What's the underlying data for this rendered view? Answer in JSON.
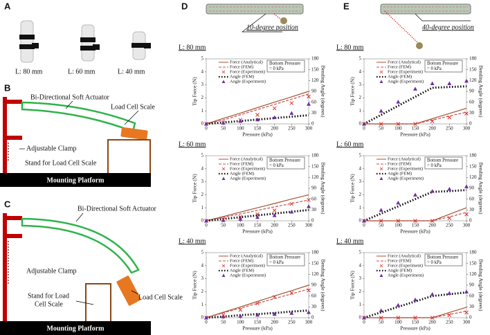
{
  "panel_labels": [
    "A",
    "B",
    "C",
    "D",
    "E"
  ],
  "panel_a": {
    "lengths": [
      "L: 80 mm",
      "L: 60 mm",
      "L: 40 mm"
    ]
  },
  "panel_b": {
    "actuator": "Bi-Directional Soft Actuator",
    "clamp": "Adjustable Clamp",
    "load_cell": "Load Cell Scale",
    "stand": "Stand for Load Cell Scale",
    "platform": "Mounting Platform"
  },
  "panel_c": {
    "actuator": "Bi-Directional Soft Actuator",
    "clamp": "Adjustable Clamp",
    "load_cell": "Load Cell Scale",
    "stand": [
      "Stand for Load",
      "Cell Scale"
    ],
    "platform": "Mounting Platform"
  },
  "panel_d": {
    "position": "10-degree position"
  },
  "panel_e": {
    "position": "40-degree position"
  },
  "chart_data": [
    {
      "type": "line",
      "subtitle": "L: 80 mm",
      "annotation": [
        "Bottom Pressure",
        "= 0 kPa"
      ],
      "xlabel": "Pressure (kPa)",
      "ylabel": "Tip Force (N)",
      "y2label": "Bending Angle (degrees)",
      "x": [
        0,
        50,
        100,
        150,
        200,
        250,
        300
      ],
      "xlim": [
        0,
        300
      ],
      "xticks": [
        0,
        50,
        100,
        150,
        200,
        250,
        300
      ],
      "ylim": [
        0,
        5
      ],
      "yticks": [
        0,
        1,
        2,
        3,
        4,
        5
      ],
      "y2lim": [
        0,
        180
      ],
      "y2ticks": [
        0,
        30,
        60,
        90,
        120,
        150,
        180
      ],
      "series": [
        {
          "name": "Force (Analytical)",
          "color": "#a0522d",
          "style": "solid",
          "values": [
            0,
            0.42,
            0.83,
            1.25,
            1.67,
            2.08,
            2.5
          ]
        },
        {
          "name": "Force (FEM)",
          "color": "#c0504d",
          "style": "dashed",
          "values": [
            0,
            0.3,
            0.7,
            1.1,
            1.5,
            1.9,
            2.3
          ]
        },
        {
          "name": "Force (Experiment)",
          "color": "#e03030",
          "marker": "x",
          "values": [
            0,
            0.1,
            0.3,
            0.7,
            1.2,
            1.6,
            2.1
          ]
        },
        {
          "name": "Angle (FEM)",
          "color": "#000000",
          "style": "dotted",
          "axis": "y2",
          "values": [
            0,
            4,
            8,
            12,
            16,
            20,
            24
          ]
        },
        {
          "name": "Angle (Experiment)",
          "color": "#7030a0",
          "marker": "triangle",
          "axis": "y2",
          "values": [
            0,
            3,
            8,
            12,
            18,
            30,
            55
          ]
        }
      ]
    },
    {
      "type": "line",
      "subtitle": "L: 60 mm",
      "annotation": [
        "Bottom Pressure",
        "= 0 kPa"
      ],
      "xlabel": "Pressure (kPa)",
      "ylabel": "Tip Force (N)",
      "y2label": "Bending Angle (degrees)",
      "x": [
        0,
        50,
        100,
        150,
        200,
        250,
        300
      ],
      "xlim": [
        0,
        300
      ],
      "xticks": [
        0,
        50,
        100,
        150,
        200,
        250,
        300
      ],
      "ylim": [
        0,
        5
      ],
      "yticks": [
        0,
        1,
        2,
        3,
        4,
        5
      ],
      "y2lim": [
        0,
        180
      ],
      "y2ticks": [
        0,
        30,
        60,
        90,
        120,
        150,
        180
      ],
      "series": [
        {
          "name": "Force (Analytical)",
          "color": "#a0522d",
          "style": "solid",
          "values": [
            0,
            0.33,
            0.67,
            1.0,
            1.33,
            1.67,
            2.0
          ]
        },
        {
          "name": "Force (FEM)",
          "color": "#c0504d",
          "style": "dashed",
          "values": [
            0,
            0.27,
            0.53,
            0.8,
            1.07,
            1.33,
            1.6
          ]
        },
        {
          "name": "Force (Experiment)",
          "color": "#e03030",
          "marker": "x",
          "values": [
            0,
            0.1,
            0.3,
            0.5,
            0.8,
            1.3,
            1.6
          ]
        },
        {
          "name": "Angle (FEM)",
          "color": "#000000",
          "style": "dotted",
          "axis": "y2",
          "values": [
            0,
            5,
            10,
            15,
            20,
            25,
            30
          ]
        },
        {
          "name": "Angle (Experiment)",
          "color": "#7030a0",
          "marker": "triangle",
          "axis": "y2",
          "values": [
            0,
            2,
            5,
            10,
            15,
            25,
            40
          ]
        }
      ]
    },
    {
      "type": "line",
      "subtitle": "L: 40 mm",
      "annotation": [
        "Bottom Pressure",
        "= 0 kPa"
      ],
      "xlabel": "Pressure (kPa)",
      "ylabel": "Tip Force (N)",
      "y2label": "Bending Angle (degrees)",
      "x": [
        0,
        50,
        100,
        150,
        200,
        250,
        300
      ],
      "xlim": [
        0,
        300
      ],
      "xticks": [
        0,
        50,
        100,
        150,
        200,
        250,
        300
      ],
      "ylim": [
        0,
        5
      ],
      "yticks": [
        0,
        1,
        2,
        3,
        4,
        5
      ],
      "y2lim": [
        0,
        180
      ],
      "y2ticks": [
        0,
        30,
        60,
        90,
        120,
        150,
        180
      ],
      "series": [
        {
          "name": "Force (Analytical)",
          "color": "#a0522d",
          "style": "solid",
          "values": [
            0,
            0.42,
            0.83,
            1.25,
            1.67,
            2.08,
            2.5
          ]
        },
        {
          "name": "Force (FEM)",
          "color": "#c0504d",
          "style": "dashed",
          "values": [
            0,
            0.37,
            0.73,
            1.1,
            1.47,
            1.83,
            2.2
          ]
        },
        {
          "name": "Force (Experiment)",
          "color": "#e03030",
          "marker": "x",
          "values": [
            0,
            0.2,
            0.6,
            1.1,
            1.6,
            1.9,
            2.1
          ]
        },
        {
          "name": "Angle (FEM)",
          "color": "#000000",
          "style": "dotted",
          "axis": "y2",
          "values": [
            0,
            3,
            7,
            10,
            13,
            17,
            20
          ]
        },
        {
          "name": "Angle (Experiment)",
          "color": "#7030a0",
          "marker": "triangle",
          "axis": "y2",
          "values": [
            0,
            3,
            5,
            8,
            10,
            13,
            15
          ]
        }
      ]
    },
    {
      "type": "line",
      "subtitle": "L: 80 mm",
      "annotation": [
        "Bottom Pressure",
        "= 0 kPa"
      ],
      "xlabel": "Pressure (kPa)",
      "ylabel": "Tip Force (N)",
      "y2label": "Bending Angle (degrees)",
      "x": [
        0,
        50,
        100,
        150,
        200,
        250,
        300
      ],
      "xlim": [
        0,
        300
      ],
      "xticks": [
        0,
        50,
        100,
        150,
        200,
        250,
        300
      ],
      "ylim": [
        0,
        5
      ],
      "yticks": [
        0,
        1,
        2,
        3,
        4,
        5
      ],
      "y2lim": [
        0,
        180
      ],
      "y2ticks": [
        0,
        30,
        60,
        90,
        120,
        150,
        180
      ],
      "series": [
        {
          "name": "Force (Analytical)",
          "color": "#a0522d",
          "style": "solid",
          "values": [
            0,
            0,
            0,
            0,
            0.4,
            0.8,
            1.2
          ]
        },
        {
          "name": "Force (FEM)",
          "color": "#c0504d",
          "style": "dashed",
          "values": [
            0,
            0,
            0,
            0,
            0.3,
            0.6,
            0.9
          ]
        },
        {
          "name": "Force (Experiment)",
          "color": "#e03030",
          "marker": "x",
          "values": [
            0,
            0,
            0,
            0,
            0.2,
            0.5,
            0.8
          ]
        },
        {
          "name": "Angle (FEM)",
          "color": "#000000",
          "style": "dotted",
          "axis": "y2",
          "values": [
            0,
            25,
            50,
            75,
            100,
            102,
            104
          ]
        },
        {
          "name": "Angle (Experiment)",
          "color": "#7030a0",
          "marker": "triangle",
          "axis": "y2",
          "values": [
            0,
            36,
            61,
            97,
            112,
            112,
            119
          ]
        }
      ]
    },
    {
      "type": "line",
      "subtitle": "L: 60 mm",
      "annotation": [
        "Bottom Pressure",
        "= 0 kPa"
      ],
      "xlabel": "Pressure (kPa)",
      "ylabel": "Tip Force (N)",
      "y2label": "Bending Angle (degrees)",
      "x": [
        0,
        50,
        100,
        150,
        200,
        250,
        300
      ],
      "xlim": [
        0,
        300
      ],
      "xticks": [
        0,
        50,
        100,
        150,
        200,
        250,
        300
      ],
      "ylim": [
        0,
        5
      ],
      "yticks": [
        0,
        1,
        2,
        3,
        4,
        5
      ],
      "y2lim": [
        0,
        180
      ],
      "y2ticks": [
        0,
        30,
        60,
        90,
        120,
        150,
        180
      ],
      "series": [
        {
          "name": "Force (Analytical)",
          "color": "#a0522d",
          "style": "solid",
          "values": [
            0,
            0,
            0,
            0,
            0,
            0.5,
            1.0
          ]
        },
        {
          "name": "Force (FEM)",
          "color": "#c0504d",
          "style": "dashed",
          "values": [
            0,
            0,
            0,
            0,
            0,
            0.3,
            0.65
          ]
        },
        {
          "name": "Force (Experiment)",
          "color": "#e03030",
          "marker": "x",
          "values": [
            0,
            0,
            0,
            0,
            0,
            0.2,
            0.5
          ]
        },
        {
          "name": "Angle (FEM)",
          "color": "#000000",
          "style": "dotted",
          "axis": "y2",
          "values": [
            0,
            20,
            40,
            60,
            80,
            82,
            85
          ]
        },
        {
          "name": "Angle (Experiment)",
          "color": "#7030a0",
          "marker": "triangle",
          "axis": "y2",
          "values": [
            0,
            30,
            50,
            72,
            82,
            88,
            95
          ]
        }
      ]
    },
    {
      "type": "line",
      "subtitle": "L: 40 mm",
      "annotation": [
        "Bottom Pressure",
        "= 0 kPa"
      ],
      "xlabel": "Pressure (kPa)",
      "ylabel": "Tip Force (N)",
      "y2label": "Bending Angle (degrees)",
      "x": [
        0,
        50,
        100,
        150,
        200,
        250,
        300
      ],
      "xlim": [
        0,
        300
      ],
      "xticks": [
        0,
        50,
        100,
        150,
        200,
        250,
        300
      ],
      "ylim": [
        0,
        5
      ],
      "yticks": [
        0,
        1,
        2,
        3,
        4,
        5
      ],
      "y2lim": [
        0,
        180
      ],
      "y2ticks": [
        0,
        30,
        60,
        90,
        120,
        150,
        180
      ],
      "series": [
        {
          "name": "Force (Analytical)",
          "color": "#a0522d",
          "style": "solid",
          "values": [
            0,
            0,
            0,
            0,
            0,
            0.4,
            0.8
          ]
        },
        {
          "name": "Force (FEM)",
          "color": "#c0504d",
          "style": "dashed",
          "values": [
            0,
            0,
            0,
            0,
            0,
            0.25,
            0.5
          ]
        },
        {
          "name": "Force (Experiment)",
          "color": "#e03030",
          "marker": "x",
          "values": [
            0,
            0,
            0,
            0,
            0,
            0.2,
            0.4
          ]
        },
        {
          "name": "Angle (FEM)",
          "color": "#000000",
          "style": "dotted",
          "axis": "y2",
          "values": [
            0,
            15,
            30,
            45,
            60,
            65,
            70
          ]
        },
        {
          "name": "Angle (Experiment)",
          "color": "#7030a0",
          "marker": "triangle",
          "axis": "y2",
          "values": [
            0,
            20,
            35,
            50,
            65,
            68,
            72
          ]
        }
      ]
    }
  ]
}
